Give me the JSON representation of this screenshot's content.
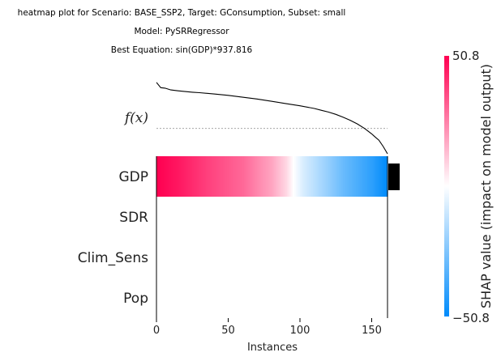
{
  "chart_data": {
    "type": "heatmap",
    "title_lines": [
      "heatmap plot for Scenario: BASE_SSP2, Target: GConsumption, Subset: small",
      "Model: PySRRegressor",
      "Best Equation: sin(GDP)*937.816"
    ],
    "xlabel": "Instances",
    "x_ticks": [
      0,
      50,
      100,
      150
    ],
    "xlim": [
      0,
      161
    ],
    "n_instances": 161,
    "features": [
      "GDP",
      "SDR",
      "Clim_Sens",
      "Pop"
    ],
    "fx_label": "f(x)",
    "colorbar": {
      "label": "SHAP value (impact on model output)",
      "min": -50.8,
      "max": 50.8,
      "min_label": "−50.8",
      "max_label": "50.8",
      "low_color": "#008bfb",
      "high_color": "#ff0051"
    },
    "gdp_shap_values": [
      50.8,
      46.0,
      38.0,
      30.0,
      18.0,
      8.0,
      0.0,
      -8.0,
      -18.0,
      -30.0,
      -42.0,
      -50.8
    ],
    "gdp_shap_x": [
      0,
      15,
      35,
      60,
      80,
      90,
      95,
      102,
      115,
      130,
      150,
      160
    ],
    "fx_curve": {
      "x": [
        0,
        3,
        6,
        10,
        15,
        20,
        25,
        30,
        40,
        50,
        60,
        70,
        80,
        90,
        100,
        110,
        115,
        120,
        125,
        130,
        135,
        140,
        145,
        150,
        152,
        155,
        158,
        161
      ],
      "y": [
        50.8,
        45.0,
        44.5,
        42.5,
        41.5,
        40.7,
        40.0,
        39.5,
        38.0,
        36.5,
        34.5,
        32.5,
        30.0,
        27.5,
        25.0,
        22.0,
        20.0,
        18.0,
        15.5,
        12.5,
        9.0,
        5.0,
        0.0,
        -6.0,
        -9.0,
        -13.0,
        -20.0,
        -28.0
      ],
      "base_value": 0.0,
      "ylim": [
        -28,
        56
      ]
    },
    "sum_bar": {
      "feature": "GDP",
      "value": 26.0,
      "color": "#000000"
    }
  }
}
